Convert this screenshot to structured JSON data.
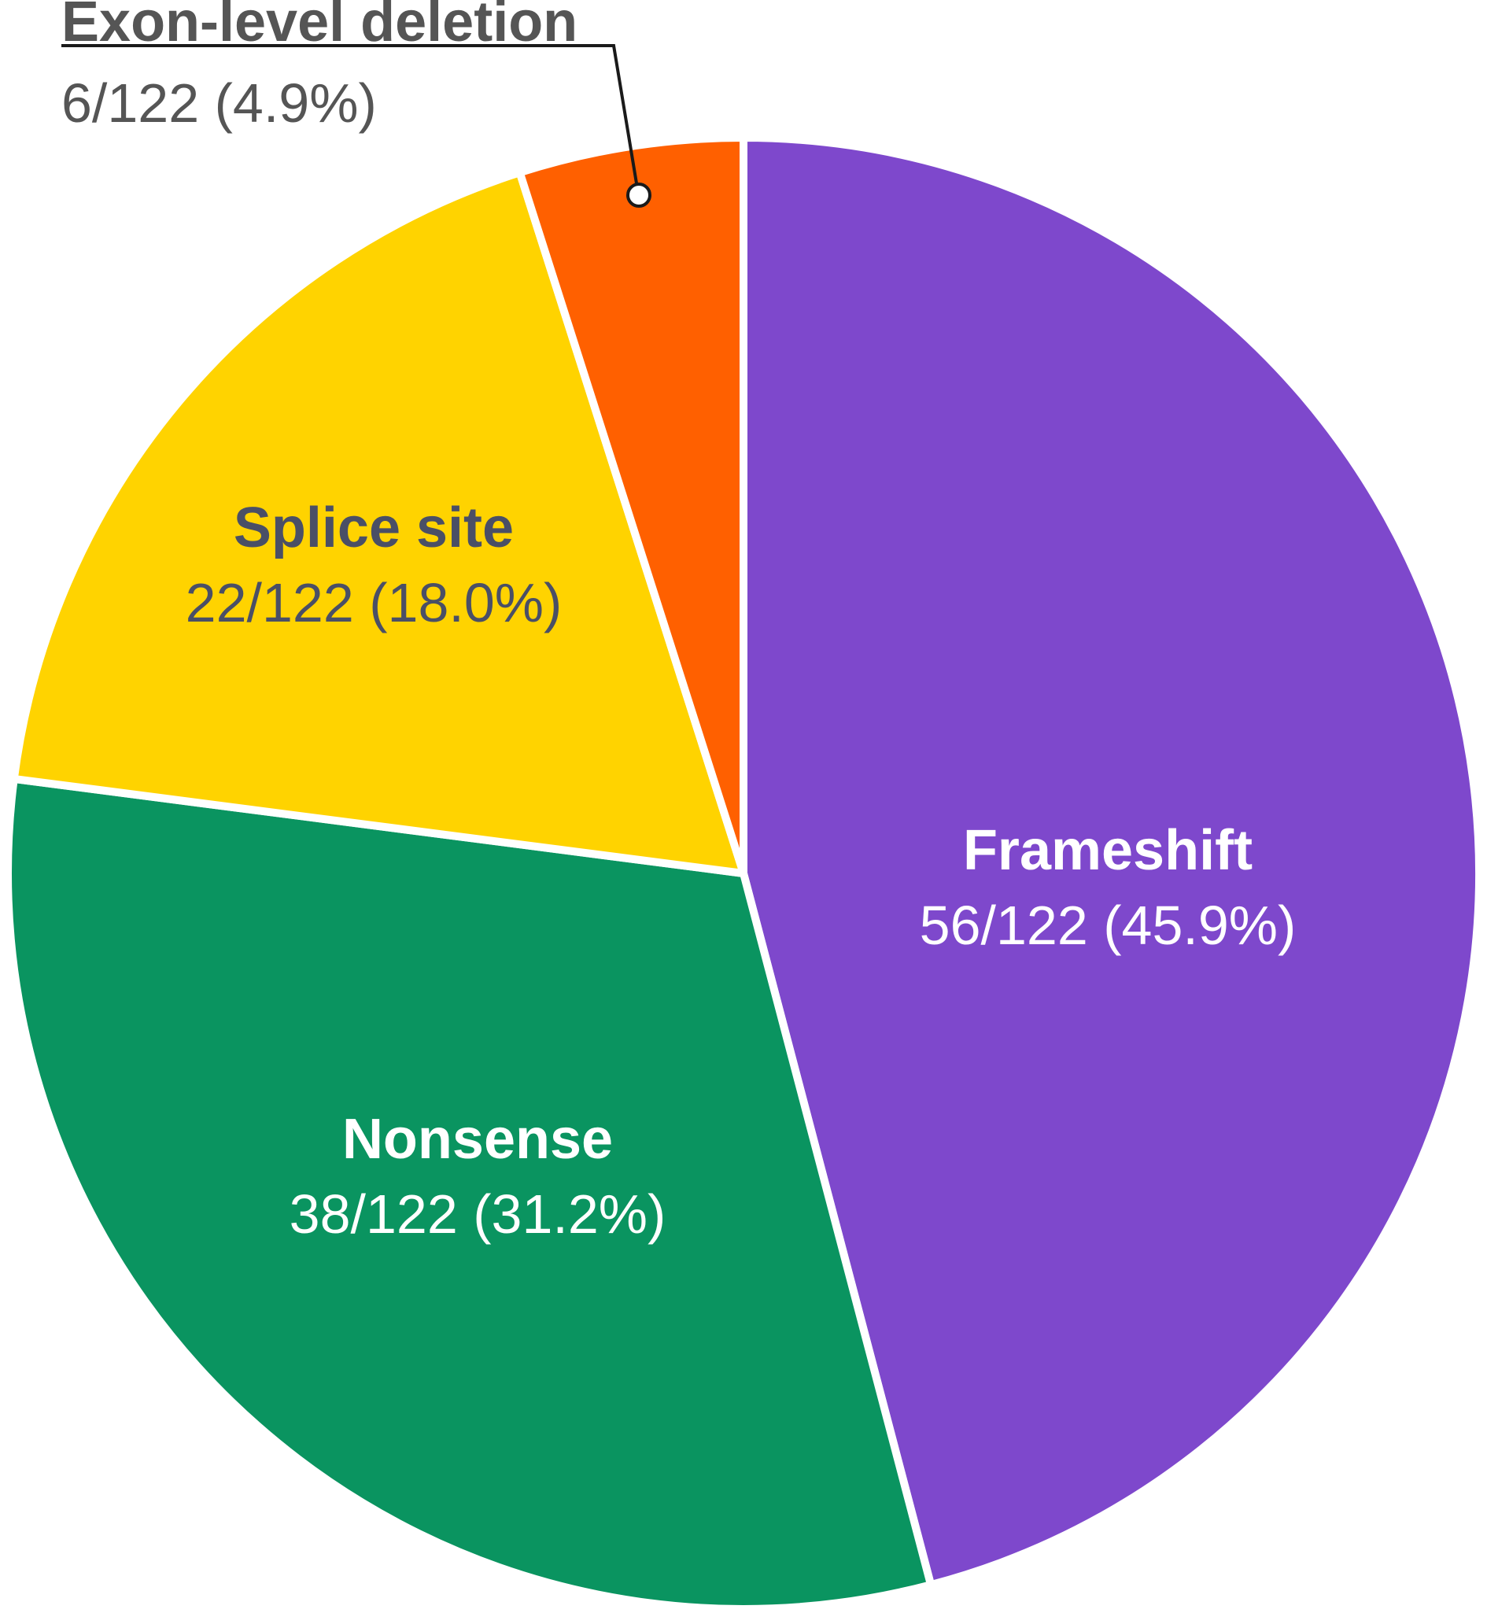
{
  "chart_data": {
    "type": "pie",
    "title": "",
    "total": 122,
    "slices": [
      {
        "label": "Frameshift",
        "value": 56,
        "value_text": "56/122 (45.9%)",
        "color": "#7E48CC",
        "text_color": "#ffffff"
      },
      {
        "label": "Nonsense",
        "value": 38,
        "value_text": "38/122 (31.2%)",
        "color": "#0A9460",
        "text_color": "#ffffff"
      },
      {
        "label": "Splice site",
        "value": 22,
        "value_text": "22/122 (18.0%)",
        "color": "#FFD300",
        "text_color": "#4A4F66"
      },
      {
        "label": "Exon-level deletion",
        "value": 6,
        "value_text": "6/122 (4.9%)",
        "color": "#FF6000",
        "text_color": "#555555"
      }
    ],
    "start": "12 o'clock",
    "direction": "clockwise",
    "separator_color": "#ffffff",
    "leader_line_color": "#1a1a1a"
  }
}
